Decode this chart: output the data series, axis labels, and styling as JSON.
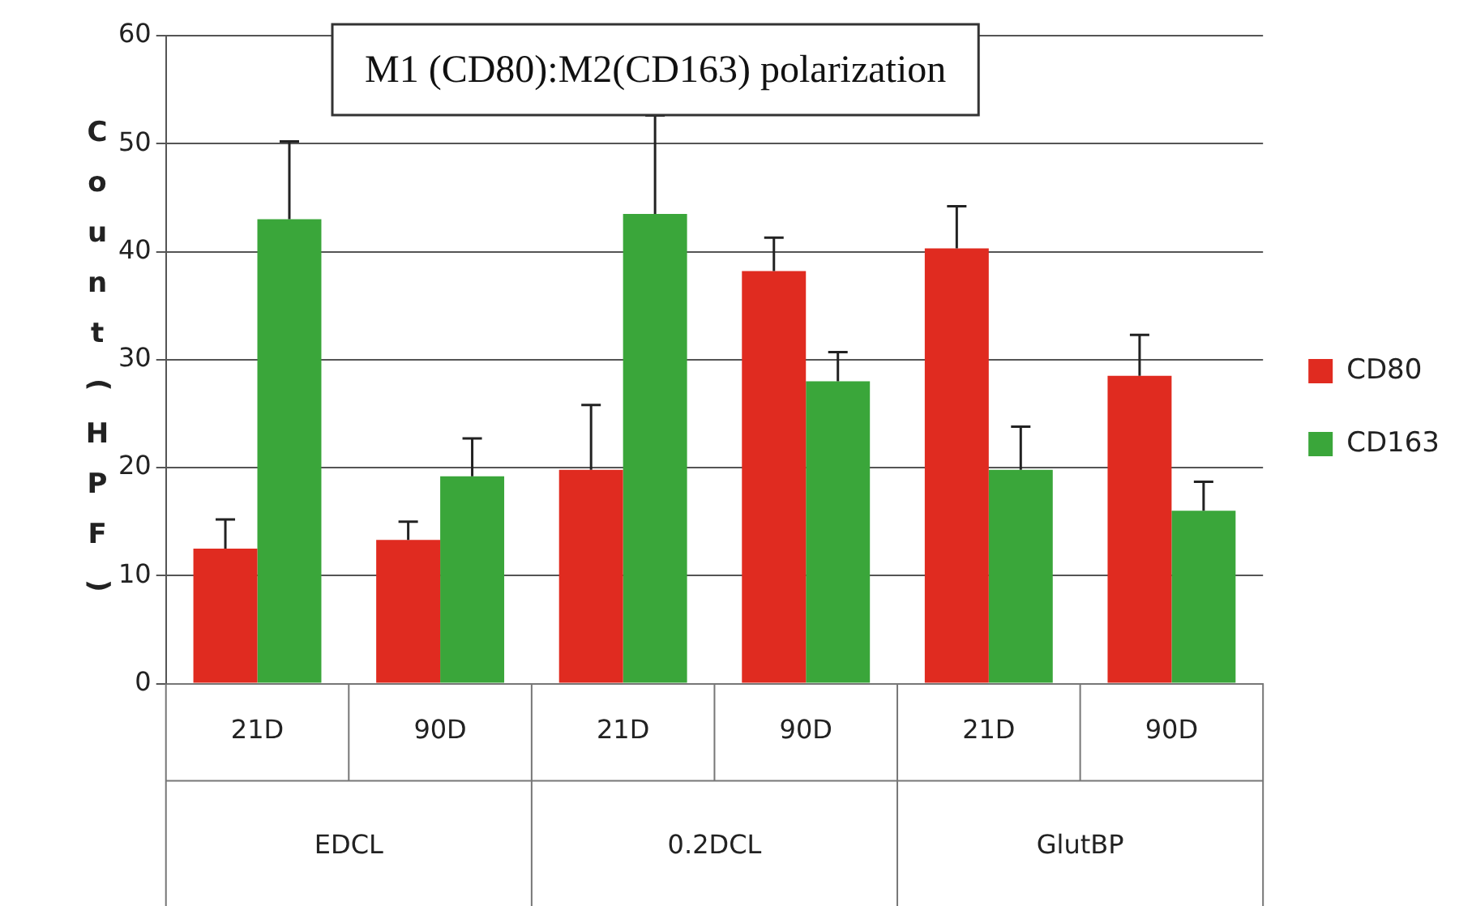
{
  "chart_data": {
    "type": "bar",
    "title": "M1 (CD80):M2(CD163) polarization",
    "ylabel": "Count (HPF)",
    "categories": [
      "21D",
      "90D",
      "21D",
      "90D",
      "21D",
      "90D"
    ],
    "annotations": [
      "EDCL",
      "0.2DCL",
      "GlutBP"
    ],
    "series": [
      {
        "name": "CD80",
        "color": "#e02b20",
        "values": [
          12.5,
          13.3,
          19.8,
          38.2,
          40.3,
          28.5
        ],
        "errors": [
          [
            12.5,
            15.2
          ],
          [
            13.3,
            15
          ],
          [
            19.8,
            25.8
          ],
          [
            38.2,
            41.3
          ],
          [
            40.3,
            44.2
          ],
          [
            28.5,
            32.3
          ]
        ]
      },
      {
        "name": "CD163",
        "color": "#3aa63a",
        "values": [
          43,
          19.2,
          43.5,
          28,
          19.8,
          16
        ],
        "errors": [
          [
            43,
            50.2
          ],
          [
            19.2,
            22.7
          ],
          [
            43.5,
            52.6
          ],
          [
            28,
            30.7
          ],
          [
            19.8,
            23.8
          ],
          [
            16,
            18.7
          ]
        ]
      }
    ],
    "ylim": [
      0,
      60
    ],
    "yticks": [
      0,
      10,
      20,
      30,
      40,
      50,
      60
    ],
    "grid": "y",
    "legend": "right"
  }
}
